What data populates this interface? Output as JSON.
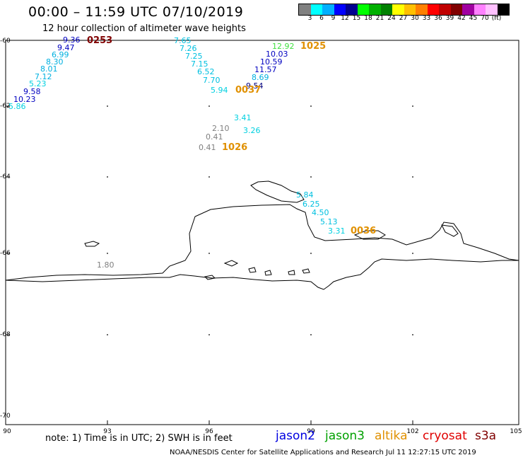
{
  "header": {
    "title": "00:00 – 11:59 UTC 07/10/2019",
    "subtitle": "12 hour collection of altimeter wave heights"
  },
  "colorbar": {
    "colors": [
      "#808080",
      "#00ffff",
      "#00b0ff",
      "#0000ff",
      "#000090",
      "#00ff00",
      "#00b000",
      "#008000",
      "#ffff00",
      "#ffc000",
      "#ff8000",
      "#ff0000",
      "#c00000",
      "#800000",
      "#a000a0",
      "#ff80ff",
      "#ffc0ff",
      "#000000"
    ],
    "labels": [
      "3",
      "6",
      "9",
      "12",
      "15",
      "18",
      "21",
      "24",
      "27",
      "30",
      "33",
      "36",
      "39",
      "42",
      "45",
      "70",
      "(ft)"
    ]
  },
  "axes": {
    "lat_labels": [
      "-60",
      "-62",
      "-64",
      "-66",
      "-68",
      "-70"
    ],
    "lon_labels": [
      "90",
      "93",
      "96",
      "99",
      "102",
      "105"
    ]
  },
  "observations": {
    "track_a": [
      {
        "v": "9.36",
        "c": "#0000c0"
      },
      {
        "v": "9.47",
        "c": "#0000c0"
      },
      {
        "v": "6.99",
        "c": "#00b0e0"
      },
      {
        "v": "8.30",
        "c": "#00b0e0"
      },
      {
        "v": "8.01",
        "c": "#00b0e0"
      },
      {
        "v": "7.12",
        "c": "#00b0e0"
      },
      {
        "v": "5.23",
        "c": "#00d0e0"
      },
      {
        "v": "9.58",
        "c": "#0000c0"
      },
      {
        "v": "10.23",
        "c": "#0000c0"
      },
      {
        "v": "5.86",
        "c": "#00d0e0"
      }
    ],
    "track_b": [
      {
        "v": "7.65",
        "c": "#00c0e0"
      },
      {
        "v": "7.26",
        "c": "#00c0e0"
      },
      {
        "v": "7.25",
        "c": "#00c0e0"
      },
      {
        "v": "7.15",
        "c": "#00c0e0"
      },
      {
        "v": "6.52",
        "c": "#00c0e0"
      },
      {
        "v": "7.70",
        "c": "#00c0e0"
      },
      {
        "v": "5.94",
        "c": "#00d0e0"
      }
    ],
    "track_c": [
      {
        "v": "12.92",
        "c": "#40e040"
      },
      {
        "v": "10.03",
        "c": "#0000c0"
      },
      {
        "v": "10.59",
        "c": "#0000c0"
      },
      {
        "v": "11.57",
        "c": "#0000c0"
      },
      {
        "v": "8.69",
        "c": "#00b0e0"
      },
      {
        "v": "9.54",
        "c": "#000080"
      }
    ],
    "track_d": [
      {
        "v": "3.41",
        "c": "#00d0e0"
      },
      {
        "v": "2.10",
        "c": "#808080"
      },
      {
        "v": "3.26",
        "c": "#00d0e0"
      },
      {
        "v": "0.41",
        "c": "#808080"
      },
      {
        "v": "0.41",
        "c": "#808080"
      }
    ],
    "track_e": [
      {
        "v": "5.84",
        "c": "#00c0e0"
      },
      {
        "v": "6.25",
        "c": "#00c0e0"
      },
      {
        "v": "4.50",
        "c": "#00c0e0"
      },
      {
        "v": "5.13",
        "c": "#00c0e0"
      },
      {
        "v": "3.31",
        "c": "#00d0e0"
      }
    ],
    "other": [
      {
        "v": "1.80",
        "c": "#808080"
      }
    ],
    "pass_times": [
      {
        "t": "0253",
        "c": "#800000"
      },
      {
        "t": "1025",
        "c": "#e09000"
      },
      {
        "t": "0037",
        "c": "#e09000"
      },
      {
        "t": "1026",
        "c": "#e09000"
      },
      {
        "t": "0036",
        "c": "#e09000"
      }
    ]
  },
  "footer": {
    "note": "note: 1) Time is in UTC; 2) SWH is in feet",
    "satellites": [
      {
        "name": "jason2",
        "color": "#0000e0"
      },
      {
        "name": "jason3",
        "color": "#00a000"
      },
      {
        "name": "altika",
        "color": "#e09000"
      },
      {
        "name": "cryosat",
        "color": "#e00000"
      },
      {
        "name": "s3a",
        "color": "#800000"
      }
    ],
    "credit": "NOAA/NESDIS Center for Satellite Applications and Research    Jul 11 12:27:15 UTC 2019"
  }
}
